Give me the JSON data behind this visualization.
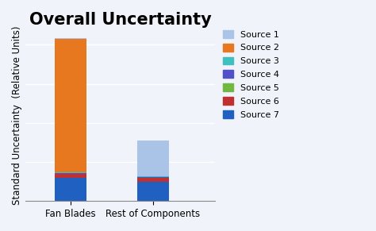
{
  "title": "Overall Uncertainty",
  "ylabel": "Standard Uncertainty  (Relative Units)",
  "categories": [
    "Fan Blades",
    "Rest of Components"
  ],
  "sources": [
    "Source 7",
    "Source 6",
    "Source 5",
    "Source 4",
    "Source 3",
    "Source 2",
    "Source 1"
  ],
  "legend_sources": [
    "Source 1",
    "Source 2",
    "Source 3",
    "Source 4",
    "Source 5",
    "Source 6",
    "Source 7"
  ],
  "colors": [
    "#2060c0",
    "#c03030",
    "#70b840",
    "#5050c8",
    "#40bfbf",
    "#e87820",
    "#aac4e8"
  ],
  "legend_colors": [
    "#aac4e8",
    "#e87820",
    "#40bfbf",
    "#5050c8",
    "#70b840",
    "#c03030",
    "#2060c0"
  ],
  "values": [
    [
      0.12,
      0.018,
      0.002,
      0.003,
      0.005,
      0.68,
      0.005
    ],
    [
      0.1,
      0.018,
      0.002,
      0.003,
      0.005,
      0.0,
      0.18
    ]
  ],
  "background_color": "#f0f4fa",
  "plot_bg": "#f0f4fa",
  "grid": true,
  "ylim": [
    0,
    0.88
  ],
  "title_fontsize": 15,
  "label_fontsize": 8.5,
  "bar_width": 0.38
}
